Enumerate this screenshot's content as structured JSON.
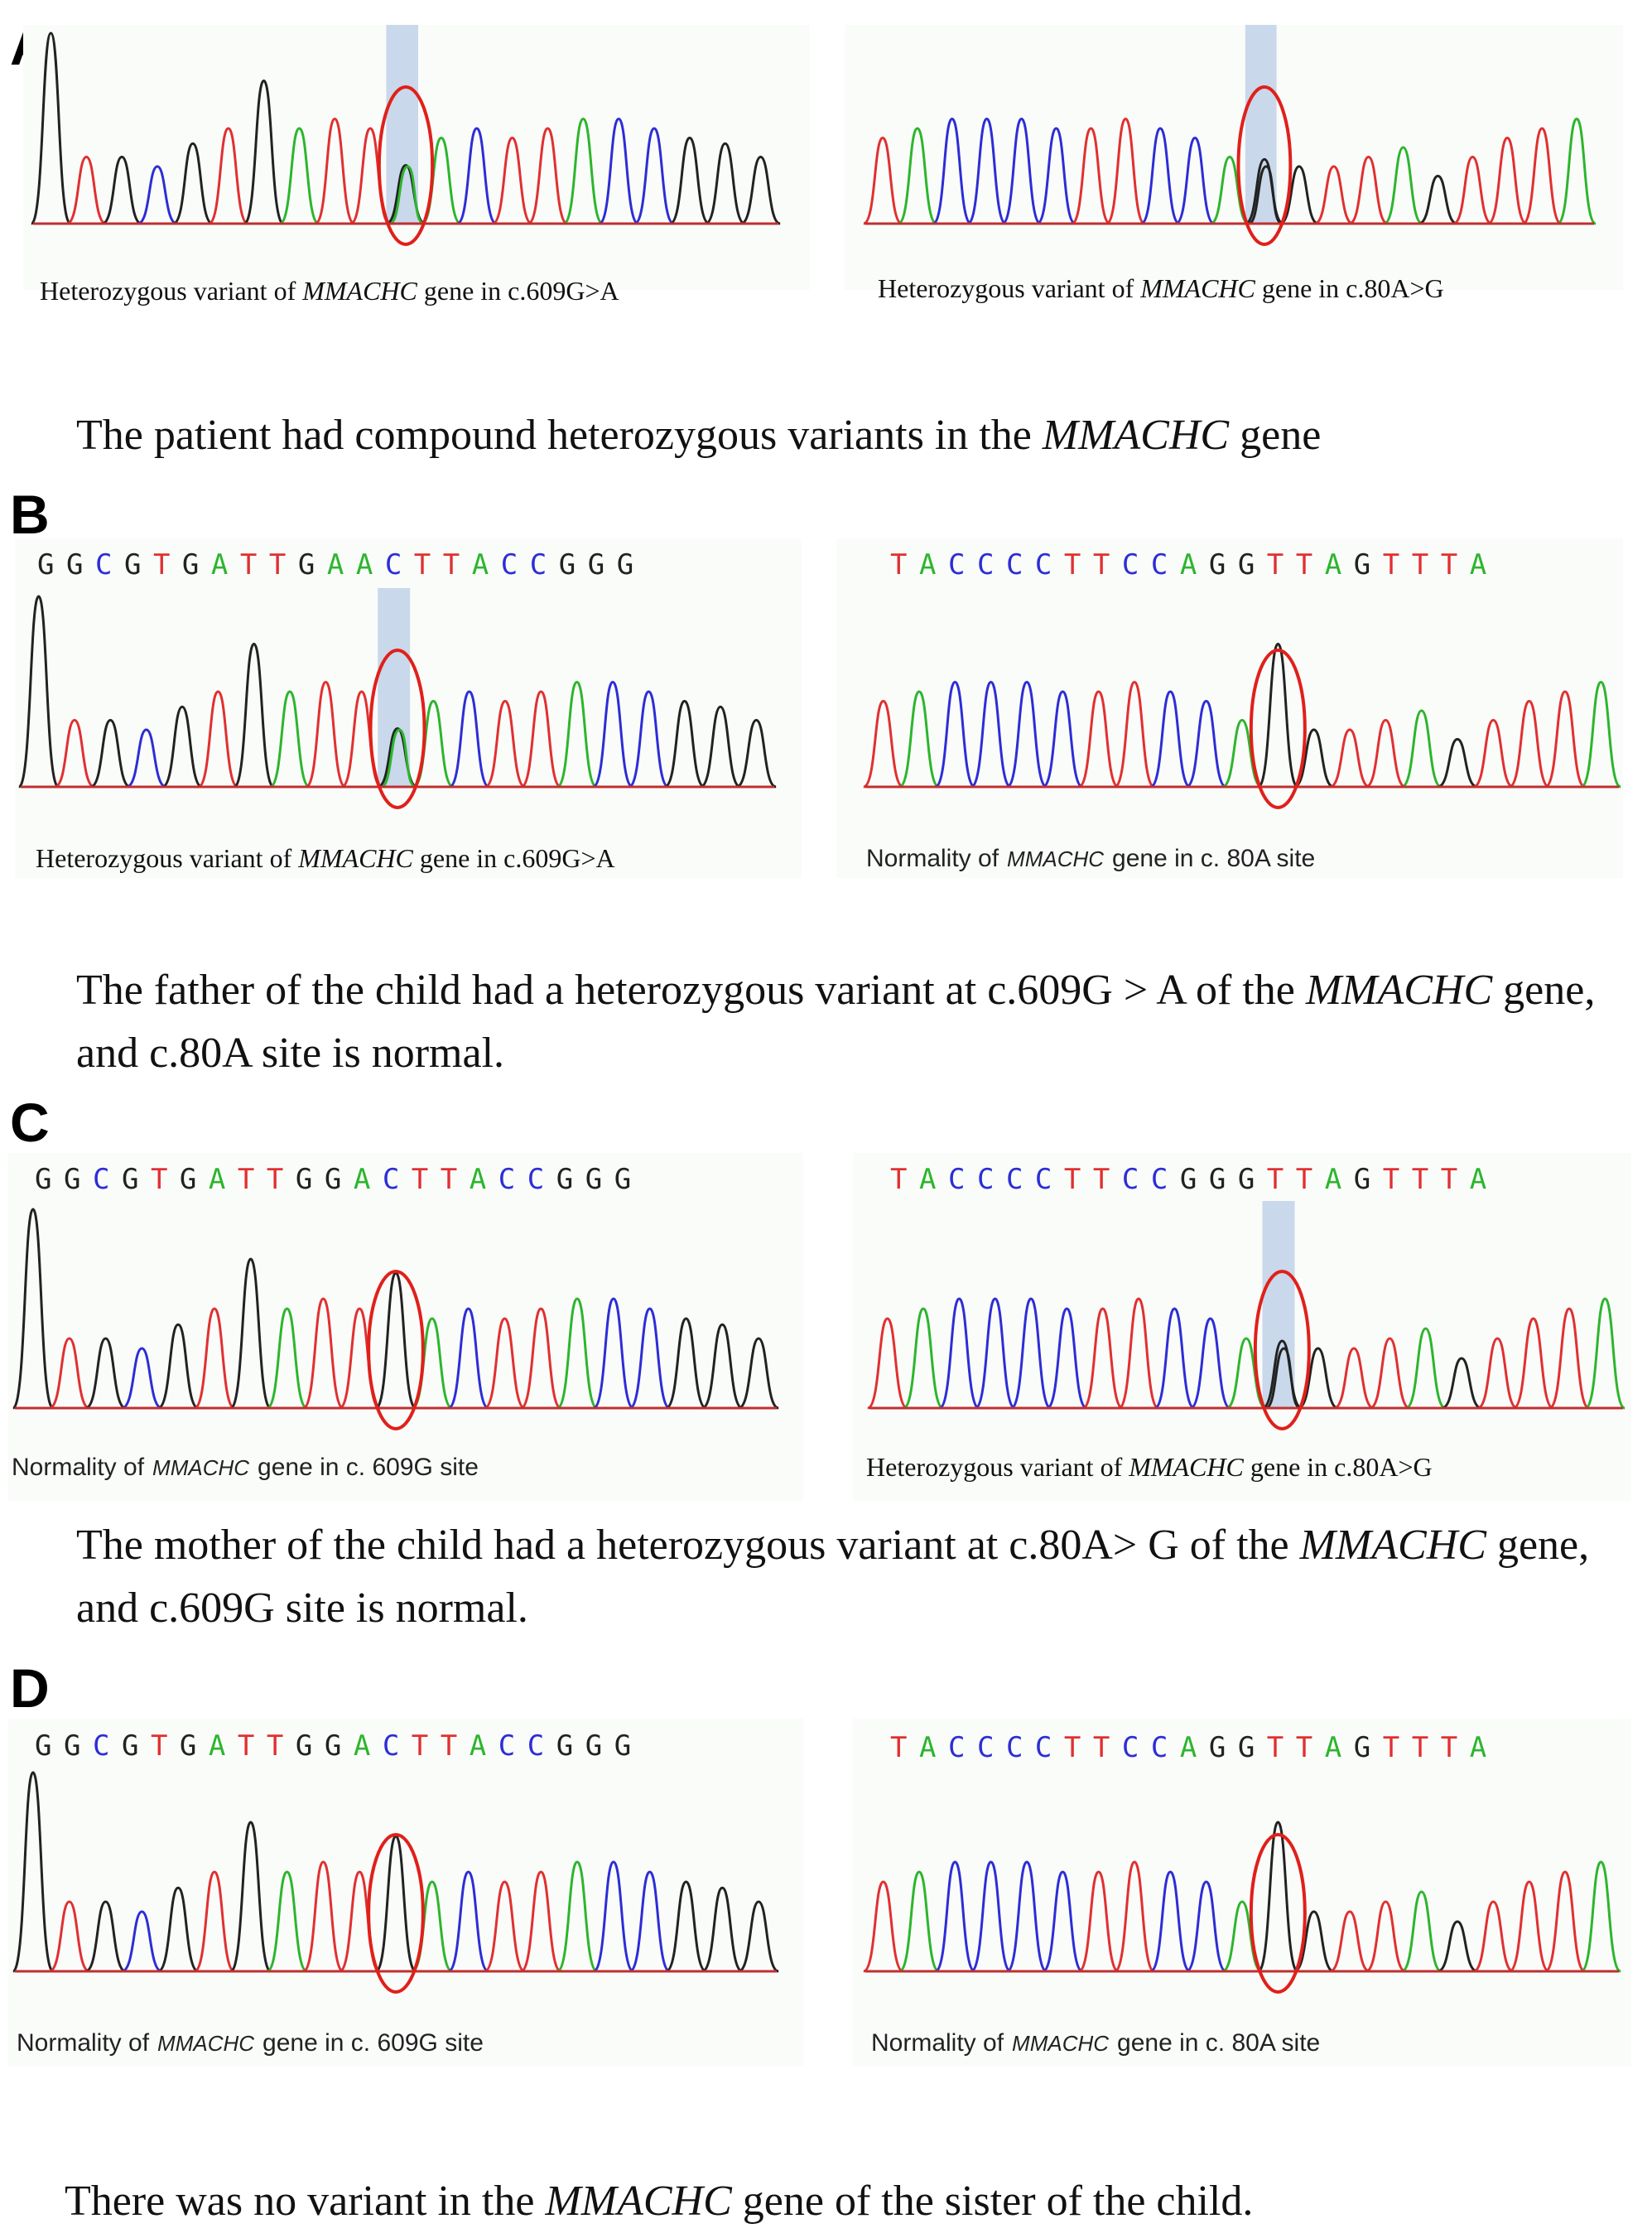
{
  "panels": {
    "A": {
      "letter": "A",
      "left_caption": {
        "pre": "Heterozygous variant of ",
        "gene": "MMACHC",
        "post": " gene in c.609G>A"
      },
      "right_caption": {
        "pre": "Heterozygous variant of ",
        "gene": "MMACHC",
        "post": " gene in c.80A>G"
      },
      "summary": {
        "pre": "The patient had compound heterozygous variants in the ",
        "gene": "MMACHC",
        "post": " gene"
      }
    },
    "B": {
      "letter": "B",
      "left_seq": "GGCGTGATTGAACTTACCGGG",
      "right_seq": "TACCCCTTCCAGGTTAGTTTA",
      "left_caption": {
        "pre": "Heterozygous variant of ",
        "gene": "MMACHC",
        "post": " gene in c.609G>A"
      },
      "right_caption": {
        "pre": "Normality of",
        "gene": "MMACHC",
        "post": "gene in c. 80A site"
      },
      "summary": {
        "pre": "The father of the child had a heterozygous variant at c.609G > A of the ",
        "gene": "MMACHC",
        "post": " gene, and c.80A site is normal."
      }
    },
    "C": {
      "letter": "C",
      "left_seq": "GGCGTGATTGGACTTACCGGG",
      "right_seq": "TACCCCTTCCGGGTTAGTTTA",
      "left_caption": {
        "pre": "Normality of",
        "gene": "MMACHC",
        "post": "gene in c. 609G site"
      },
      "right_caption": {
        "pre": "Heterozygous variant of ",
        "gene": "MMACHC",
        "post": " gene in c.80A>G"
      },
      "summary": {
        "pre": "The mother of the child had a heterozygous variant at c.80A> G of the ",
        "gene": "MMACHC",
        "post": " gene, and c.609G site is normal."
      }
    },
    "D": {
      "letter": "D",
      "left_seq": "GGCGTGATTGGACTTACCGGG",
      "right_seq": "TACCCCTTCCAGGTTAGTTTA",
      "left_caption": {
        "pre": "Normality of",
        "gene": "MMACHC",
        "post": "gene in c. 609G site"
      },
      "right_caption": {
        "pre": "Normality of",
        "gene": "MMACHC",
        "post": "gene in c. 80A site"
      },
      "summary": {
        "pre": "There was no variant in the ",
        "gene": "MMACHC",
        "post": " gene of the sister of the child."
      }
    }
  },
  "colors": {
    "A_base": "#2db52d",
    "C_base": "#2d2dd6",
    "G_base": "#222222",
    "T_base": "#e03030",
    "highlight": "#b8cce4",
    "circle": "#e0201a",
    "baseline": "#c03030"
  }
}
